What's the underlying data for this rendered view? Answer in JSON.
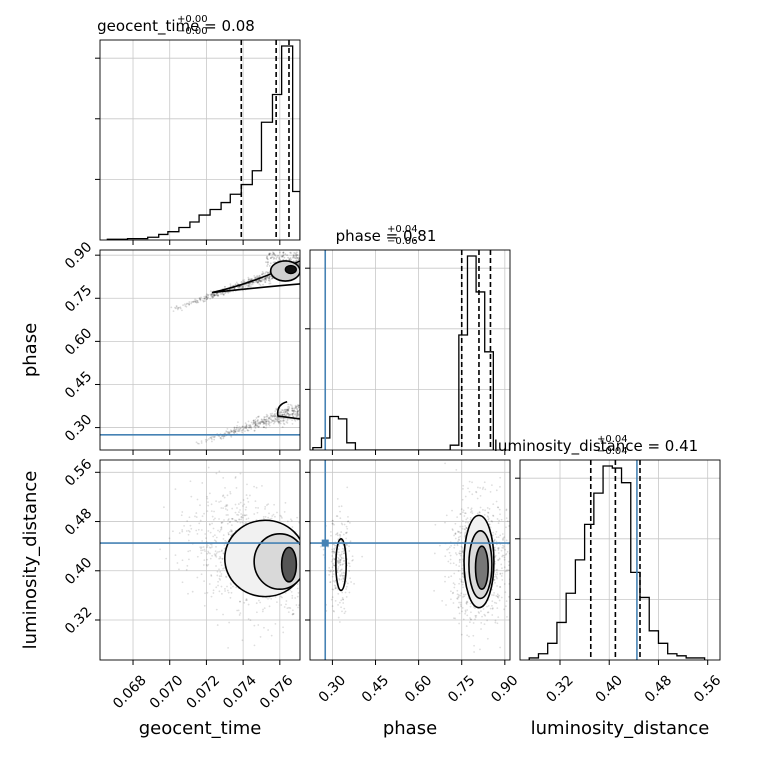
{
  "chart_data": {
    "type": "corner",
    "parameters": [
      "geocent_time",
      "phase",
      "luminosity_distance"
    ],
    "truth": {
      "geocent_time": null,
      "phase": 0.275,
      "luminosity_distance": 0.445
    },
    "colors": {
      "truth": "#4682b4",
      "line": "#000000",
      "grid": "#c8c8c8"
    },
    "axis_labels": {
      "geocent_time": "geocent_time",
      "phase": "phase",
      "luminosity_distance": "luminosity_distance"
    },
    "titles": [
      {
        "param": "geocent_time",
        "main": "geocent_time = 0.08",
        "sup": "+0.00",
        "sub": "−0.00"
      },
      {
        "param": "phase",
        "main": "phase = 0.81",
        "sup": "+0.04",
        "sub": "−0.06"
      },
      {
        "param": "luminosity_distance",
        "main": "luminosity_distance = 0.41",
        "sup": "+0.04",
        "sub": "−0.04"
      }
    ],
    "ticks": {
      "geocent_time": [
        "0.068",
        "0.070",
        "0.072",
        "0.074",
        "0.076"
      ],
      "phase": [
        "0.30",
        "0.45",
        "0.60",
        "0.75",
        "0.90"
      ],
      "luminosity_distance": [
        "0.32",
        "0.40",
        "0.48",
        "0.56"
      ]
    },
    "ranges": {
      "geocent_time": [
        0.0662,
        0.0771
      ],
      "phase": [
        0.222,
        0.918
      ],
      "luminosity_distance": [
        0.255,
        0.58
      ]
    },
    "histograms": {
      "geocent_time": {
        "edges": [
          0.0666,
          0.0677,
          0.0688,
          0.0694,
          0.0699,
          0.0705,
          0.0711,
          0.0716,
          0.0722,
          0.0728,
          0.0733,
          0.0739,
          0.0745,
          0.075,
          0.0756,
          0.0761,
          0.0767,
          0.0771
        ],
        "counts": [
          0.5,
          1,
          2,
          4,
          6,
          9,
          13,
          18,
          22,
          27,
          33,
          40,
          50,
          85,
          105,
          140,
          35
        ],
        "quantiles": [
          0.0739,
          0.0758,
          0.0765
        ]
      },
      "phase": {
        "edges": [
          0.232,
          0.262,
          0.291,
          0.321,
          0.35,
          0.38,
          0.41,
          0.44,
          0.47,
          0.5,
          0.53,
          0.56,
          0.59,
          0.62,
          0.65,
          0.68,
          0.71,
          0.74,
          0.77,
          0.8,
          0.83,
          0.86
        ],
        "counts": [
          1,
          5,
          14,
          13,
          3,
          0,
          0,
          0,
          0,
          0,
          0,
          0,
          0,
          0,
          0,
          0,
          2,
          48,
          81,
          66,
          41
        ],
        "quantiles": [
          0.75,
          0.81,
          0.85
        ]
      },
      "luminosity_distance": {
        "edges": [
          0.27,
          0.285,
          0.3,
          0.315,
          0.33,
          0.345,
          0.36,
          0.375,
          0.39,
          0.405,
          0.42,
          0.435,
          0.45,
          0.465,
          0.48,
          0.495,
          0.51,
          0.525,
          0.54,
          0.555
        ],
        "counts": [
          1,
          3,
          8,
          18,
          32,
          48,
          65,
          80,
          93,
          92,
          85,
          42,
          30,
          14,
          8,
          3,
          2,
          1,
          1
        ],
        "quantiles": [
          0.37,
          0.41,
          0.45
        ]
      }
    }
  }
}
